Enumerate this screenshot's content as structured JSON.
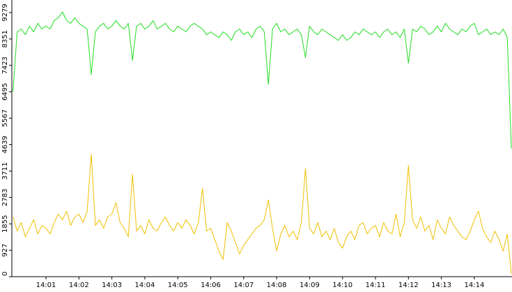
{
  "chart_data": {
    "type": "line",
    "categories": [
      null,
      null,
      null,
      null,
      null,
      null,
      null,
      null,
      "14:01",
      null,
      null,
      null,
      null,
      null,
      null,
      null,
      "14:02",
      null,
      null,
      null,
      null,
      null,
      null,
      null,
      "14:03",
      null,
      null,
      null,
      null,
      null,
      null,
      null,
      "14:04",
      null,
      null,
      null,
      null,
      null,
      null,
      null,
      "14:05",
      null,
      null,
      null,
      null,
      null,
      null,
      null,
      "14:06",
      null,
      null,
      null,
      null,
      null,
      null,
      null,
      "14:07",
      null,
      null,
      null,
      null,
      null,
      null,
      null,
      "14:08",
      null,
      null,
      null,
      null,
      null,
      null,
      null,
      "14:09",
      null,
      null,
      null,
      null,
      null,
      null,
      null,
      "14:10",
      null,
      null,
      null,
      null,
      null,
      null,
      null,
      "14:11",
      null,
      null,
      null,
      null,
      null,
      null,
      null,
      "14:12",
      null,
      null,
      null,
      null,
      null,
      null,
      null,
      "14:13",
      null,
      null,
      null,
      null,
      null,
      null,
      null,
      "14:14",
      null,
      null,
      null,
      null,
      null,
      null,
      null,
      null,
      null
    ],
    "series": [
      {
        "color": "#22dd22",
        "values": [
          6500,
          8600,
          8700,
          8500,
          8800,
          8600,
          8900,
          8700,
          8800,
          8700,
          9000,
          9100,
          9300,
          9000,
          8900,
          9100,
          8900,
          8800,
          8700,
          7100,
          8600,
          8800,
          8900,
          8700,
          8800,
          9000,
          8800,
          8700,
          8900,
          7600,
          8800,
          8900,
          8700,
          8800,
          9000,
          8700,
          8800,
          8900,
          8700,
          8600,
          8800,
          8700,
          8600,
          8800,
          8900,
          8800,
          8700,
          8500,
          8600,
          8500,
          8400,
          8600,
          8500,
          8300,
          8600,
          8700,
          8500,
          8600,
          8400,
          8700,
          8800,
          8600,
          6750,
          8700,
          8900,
          8600,
          8700,
          8500,
          8600,
          8700,
          8500,
          7700,
          8800,
          8600,
          8500,
          8700,
          8600,
          8500,
          8400,
          8300,
          8500,
          8300,
          8400,
          8600,
          8500,
          8700,
          8600,
          8500,
          8600,
          8400,
          8600,
          8700,
          8500,
          8600,
          8400,
          8700,
          7500,
          8700,
          8600,
          8800,
          8700,
          8500,
          8600,
          8800,
          8600,
          8900,
          8700,
          8600,
          8500,
          8700,
          8600,
          8800,
          8900,
          8500,
          8600,
          8700,
          8500,
          8600,
          8500,
          8700,
          8400,
          4500
        ]
      },
      {
        "color": "#f0c000",
        "values": [
          2100,
          1600,
          1900,
          1400,
          1700,
          2000,
          1500,
          1800,
          1700,
          1500,
          1900,
          2200,
          2000,
          2300,
          1800,
          2100,
          2200,
          1900,
          2300,
          4300,
          1800,
          2000,
          1700,
          2100,
          2200,
          2600,
          1900,
          1700,
          1400,
          3600,
          1600,
          1800,
          1500,
          2000,
          1700,
          1600,
          1900,
          2100,
          1800,
          1600,
          1900,
          1700,
          2000,
          1800,
          1500,
          1900,
          3100,
          1600,
          1700,
          1300,
          900,
          600,
          1900,
          1600,
          1200,
          800,
          1100,
          1300,
          1500,
          1700,
          1800,
          2000,
          2700,
          1700,
          900,
          1500,
          1800,
          1400,
          1600,
          1300,
          1900,
          3800,
          1700,
          1500,
          1900,
          1400,
          1600,
          1300,
          1700,
          1200,
          1000,
          1400,
          1600,
          1300,
          1800,
          1900,
          1500,
          1700,
          1800,
          1400,
          1900,
          1600,
          1500,
          2200,
          1400,
          1900,
          3900,
          2000,
          1700,
          2100,
          1600,
          1800,
          1300,
          2000,
          1700,
          1500,
          2100,
          1800,
          1600,
          1400,
          1300,
          1600,
          2000,
          2300,
          1700,
          1400,
          1200,
          1600,
          1300,
          900,
          1500,
          100
        ]
      }
    ],
    "ylim": [
      0,
      9279
    ],
    "yticks": [
      0,
      927,
      1855,
      2783,
      3711,
      4639,
      5567,
      6495,
      7423,
      8351,
      9279
    ]
  }
}
